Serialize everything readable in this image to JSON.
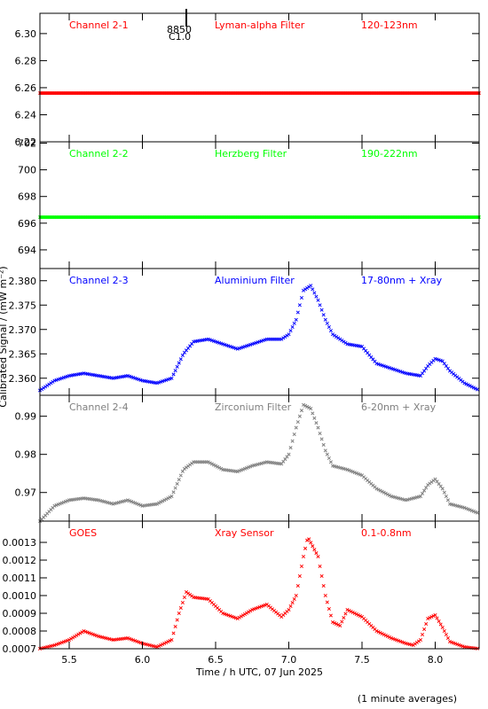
{
  "chart_data": [
    {
      "type": "scatter",
      "panel": "Channel 2-1",
      "labels": [
        "Channel 2-1",
        "Lyman-alpha Filter",
        "120-123nm"
      ],
      "color": "#ff0000",
      "ylim": [
        6.22,
        6.315
      ],
      "yticks": [
        6.22,
        6.24,
        6.26,
        6.28,
        6.3
      ],
      "ytick_labels": [
        "6.22",
        "6.24",
        "6.26",
        "6.28",
        "6.30"
      ],
      "flare_marker": {
        "x": 6.3,
        "labels": [
          "8850",
          "C1.0"
        ]
      },
      "series": [
        {
          "x": [
            5.3,
            8.3
          ],
          "y": [
            6.256,
            6.256
          ]
        }
      ]
    },
    {
      "type": "scatter",
      "panel": "Channel 2-2",
      "labels": [
        "Channel 2-2",
        "Herzberg Filter",
        "190-222nm"
      ],
      "color": "#00ff00",
      "ylim": [
        692.6,
        702.1
      ],
      "yticks": [
        694,
        696,
        698,
        700,
        702
      ],
      "ytick_labels": [
        "694",
        "696",
        "698",
        "700",
        "702"
      ],
      "series": [
        {
          "x": [
            5.3,
            8.3
          ],
          "y": [
            696.45,
            696.45
          ]
        }
      ]
    },
    {
      "type": "scatter",
      "panel": "Channel 2-3",
      "labels": [
        "Channel 2-3",
        "Aluminium Filter",
        "17-80nm + Xray"
      ],
      "color": "#0000ff",
      "ylim": [
        2.3565,
        2.3825
      ],
      "yticks": [
        2.36,
        2.365,
        2.37,
        2.375,
        2.38
      ],
      "ytick_labels": [
        "2.360",
        "2.365",
        "2.370",
        "2.375",
        "2.380"
      ],
      "series": [
        {
          "x": [
            5.3,
            5.4,
            5.5,
            5.6,
            5.7,
            5.8,
            5.9,
            6.0,
            6.1,
            6.2,
            6.28,
            6.35,
            6.45,
            6.55,
            6.65,
            6.75,
            6.85,
            6.95,
            7.0,
            7.05,
            7.1,
            7.15,
            7.2,
            7.25,
            7.3,
            7.4,
            7.5,
            7.6,
            7.7,
            7.8,
            7.9,
            7.95,
            8.0,
            8.05,
            8.1,
            8.2,
            8.3
          ],
          "y": [
            2.3575,
            2.3595,
            2.3605,
            2.361,
            2.3605,
            2.36,
            2.3605,
            2.3595,
            2.359,
            2.36,
            2.365,
            2.3675,
            2.368,
            2.367,
            2.366,
            2.367,
            2.368,
            2.368,
            2.369,
            2.372,
            2.378,
            2.379,
            2.376,
            2.372,
            2.369,
            2.367,
            2.3665,
            2.363,
            2.362,
            2.361,
            2.3605,
            2.3625,
            2.364,
            2.3635,
            2.3615,
            2.359,
            2.3575
          ]
        }
      ]
    },
    {
      "type": "scatter",
      "panel": "Channel 2-4",
      "labels": [
        "Channel 2-4",
        "Zirconium Filter",
        "6-20nm + Xray"
      ],
      "color": "#808080",
      "ylim": [
        0.9625,
        0.9955
      ],
      "yticks": [
        0.97,
        0.98,
        0.99
      ],
      "ytick_labels": [
        "0.97",
        "0.98",
        "0.99"
      ],
      "series": [
        {
          "x": [
            5.3,
            5.4,
            5.5,
            5.6,
            5.7,
            5.8,
            5.9,
            6.0,
            6.1,
            6.2,
            6.28,
            6.35,
            6.45,
            6.55,
            6.65,
            6.75,
            6.85,
            6.95,
            7.0,
            7.05,
            7.1,
            7.15,
            7.2,
            7.25,
            7.3,
            7.4,
            7.5,
            7.6,
            7.7,
            7.8,
            7.9,
            7.95,
            8.0,
            8.05,
            8.1,
            8.2,
            8.3
          ],
          "y": [
            0.9625,
            0.9665,
            0.968,
            0.9685,
            0.968,
            0.967,
            0.968,
            0.9665,
            0.967,
            0.969,
            0.976,
            0.978,
            0.978,
            0.976,
            0.9755,
            0.977,
            0.978,
            0.9775,
            0.98,
            0.987,
            0.993,
            0.992,
            0.987,
            0.981,
            0.977,
            0.976,
            0.9745,
            0.971,
            0.969,
            0.968,
            0.969,
            0.972,
            0.9735,
            0.971,
            0.967,
            0.966,
            0.9645
          ]
        }
      ]
    },
    {
      "type": "scatter",
      "panel": "GOES",
      "labels": [
        "GOES",
        "Xray Sensor",
        "0.1-0.8nm"
      ],
      "color": "#ff0000",
      "ylim": [
        0.0007,
        0.00142
      ],
      "yticks": [
        0.0007,
        0.0008,
        0.0009,
        0.001,
        0.0011,
        0.0012,
        0.0013
      ],
      "ytick_labels": [
        "0.0007",
        "0.0008",
        "0.0009",
        "0.0010",
        "0.0011",
        "0.0012",
        "0.0013"
      ],
      "series": [
        {
          "x": [
            5.3,
            5.4,
            5.5,
            5.6,
            5.7,
            5.8,
            5.9,
            6.0,
            6.1,
            6.2,
            6.25,
            6.3,
            6.35,
            6.45,
            6.55,
            6.65,
            6.75,
            6.85,
            6.95,
            7.0,
            7.05,
            7.1,
            7.13,
            7.2,
            7.25,
            7.3,
            7.35,
            7.4,
            7.5,
            7.6,
            7.7,
            7.8,
            7.85,
            7.9,
            7.95,
            8.0,
            8.05,
            8.1,
            8.2,
            8.3
          ],
          "y": [
            0.0007,
            0.00072,
            0.00075,
            0.0008,
            0.00077,
            0.00075,
            0.00076,
            0.00073,
            0.00071,
            0.00075,
            0.0009,
            0.00102,
            0.00099,
            0.00098,
            0.0009,
            0.00087,
            0.00092,
            0.00095,
            0.00088,
            0.00092,
            0.001,
            0.00122,
            0.00133,
            0.00122,
            0.001,
            0.00085,
            0.00083,
            0.00092,
            0.00088,
            0.0008,
            0.00076,
            0.00073,
            0.00072,
            0.00075,
            0.00087,
            0.00089,
            0.00082,
            0.00074,
            0.00071,
            0.0007
          ]
        }
      ]
    }
  ],
  "xaxis": {
    "xlim": [
      5.3,
      8.3
    ],
    "ticks": [
      5.5,
      6.0,
      6.5,
      7.0,
      7.5,
      8.0
    ],
    "tick_labels": [
      "5.5",
      "6.0",
      "6.5",
      "7.0",
      "7.5",
      "8.0"
    ],
    "label": "Time / h UTC, 07 Jun 2025"
  },
  "ylabel": "Calibrated Signal / (mW m⁻²)",
  "footnote": "(1 minute averages)"
}
